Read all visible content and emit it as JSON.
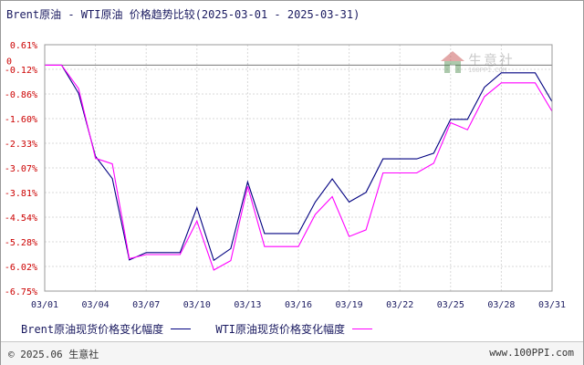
{
  "title": "Brent原油 - WTI原油 价格趋势比较(2025-03-01 - 2025-03-31)",
  "chart_data": {
    "type": "line",
    "title": "Brent原油 - WTI原油 价格趋势比较(2025-03-01 - 2025-03-31)",
    "xlabel": "",
    "ylabel": "",
    "x_ticks": [
      "03/01",
      "03/04",
      "03/07",
      "03/10",
      "03/13",
      "03/16",
      "03/19",
      "03/22",
      "03/25",
      "03/28",
      "03/31"
    ],
    "y_ticks": [
      "0.61%",
      "-0.12%",
      "-0.86%",
      "-1.60%",
      "-2.33%",
      "-3.07%",
      "-3.81%",
      "-4.54%",
      "-5.28%",
      "-6.02%",
      "-6.75%"
    ],
    "y_zero_label": "0",
    "ylim": [
      -6.75,
      0.61
    ],
    "xlim": [
      1,
      31
    ],
    "grid": true,
    "legend_position": "bottom",
    "series": [
      {
        "name": "Brent原油现货价格变化幅度",
        "color": "#000080",
        "x": [
          1,
          2,
          3,
          4,
          5,
          6,
          7,
          8,
          9,
          10,
          11,
          12,
          13,
          14,
          15,
          16,
          17,
          18,
          19,
          20,
          21,
          22,
          23,
          24,
          25,
          26,
          27,
          28,
          29,
          30,
          31
        ],
        "y": [
          0,
          0,
          -0.84,
          -2.72,
          -3.39,
          -5.82,
          -5.6,
          -5.6,
          -5.6,
          -4.26,
          -5.83,
          -5.48,
          -3.49,
          -5.03,
          -5.03,
          -5.03,
          -4.09,
          -3.4,
          -4.09,
          -3.8,
          -2.8,
          -2.8,
          -2.8,
          -2.63,
          -1.62,
          -1.62,
          -0.66,
          -0.23,
          -0.23,
          -0.23,
          -1.09
        ]
      },
      {
        "name": "WTI原油现货价格变化幅度",
        "color": "#ff00ff",
        "x": [
          1,
          2,
          3,
          4,
          5,
          6,
          7,
          8,
          9,
          10,
          11,
          12,
          13,
          14,
          15,
          16,
          17,
          18,
          19,
          20,
          21,
          22,
          23,
          24,
          25,
          26,
          27,
          28,
          29,
          30,
          31
        ],
        "y": [
          0,
          0,
          -0.7,
          -2.78,
          -2.95,
          -5.78,
          -5.66,
          -5.66,
          -5.66,
          -4.66,
          -6.12,
          -5.84,
          -3.62,
          -5.42,
          -5.42,
          -5.42,
          -4.46,
          -3.93,
          -5.12,
          -4.92,
          -3.22,
          -3.22,
          -3.22,
          -2.93,
          -1.72,
          -1.93,
          -0.94,
          -0.53,
          -0.53,
          -0.53,
          -1.38
        ]
      }
    ]
  },
  "legend": [
    {
      "label": "Brent原油现货价格变化幅度",
      "color": "#000080"
    },
    {
      "label": "WTI原油现货价格变化幅度",
      "color": "#ff00ff"
    }
  ],
  "watermark": {
    "name": "生意社",
    "url": "100PPI.COM"
  },
  "footer": {
    "copyright": "© 2025.06 生意社",
    "url": "www.100PPI.com"
  }
}
